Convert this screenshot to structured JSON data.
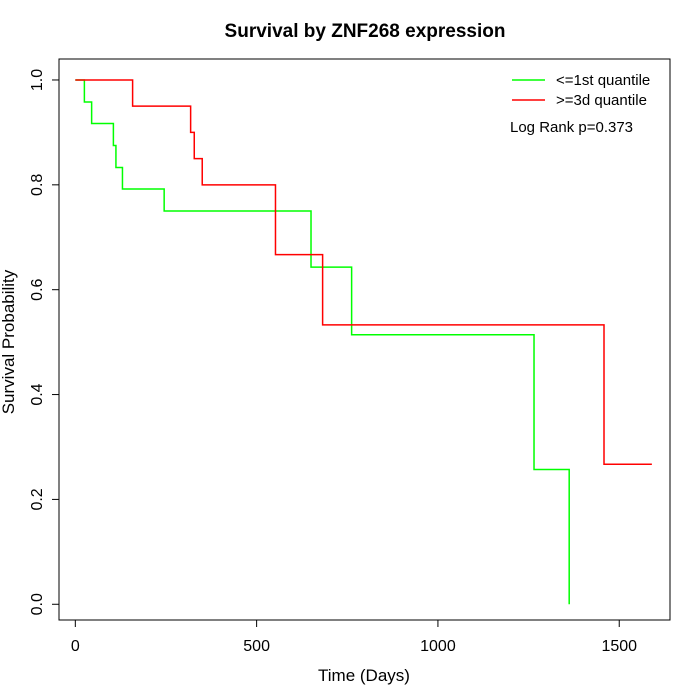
{
  "chart_data": {
    "type": "line",
    "title": "Survival by ZNF268 expression",
    "xlabel": "Time (Days)",
    "ylabel": "Survival Probability",
    "xlim": [
      -45,
      1640
    ],
    "ylim": [
      -0.03,
      1.04
    ],
    "x_ticks": [
      0,
      500,
      1000,
      1500
    ],
    "x_tick_labels": [
      "0",
      "500",
      "1000",
      "1500"
    ],
    "y_ticks": [
      0.0,
      0.2,
      0.4,
      0.6,
      0.8,
      1.0
    ],
    "y_tick_labels": [
      "0.0",
      "0.2",
      "0.4",
      "0.6",
      "0.8",
      "1.0"
    ],
    "grid": false,
    "legend_position": "top-right",
    "annotation": "Log Rank p=0.373",
    "series": [
      {
        "name": "<=1st quantile",
        "color": "#00ff00",
        "step_x": [
          0,
          25,
          45,
          105,
          112,
          130,
          245,
          650,
          762,
          1265,
          1362,
          1362
        ],
        "step_y": [
          1.0,
          0.958,
          0.917,
          0.875,
          0.833,
          0.792,
          0.75,
          0.643,
          0.514,
          0.257,
          0.257,
          0.0
        ]
      },
      {
        "name": ">=3d quantile",
        "color": "#ff0000",
        "step_x": [
          0,
          158,
          318,
          328,
          350,
          552,
          682,
          1458,
          1590
        ],
        "step_y": [
          1.0,
          0.95,
          0.9,
          0.85,
          0.8,
          0.667,
          0.533,
          0.267,
          0.267
        ]
      }
    ]
  }
}
